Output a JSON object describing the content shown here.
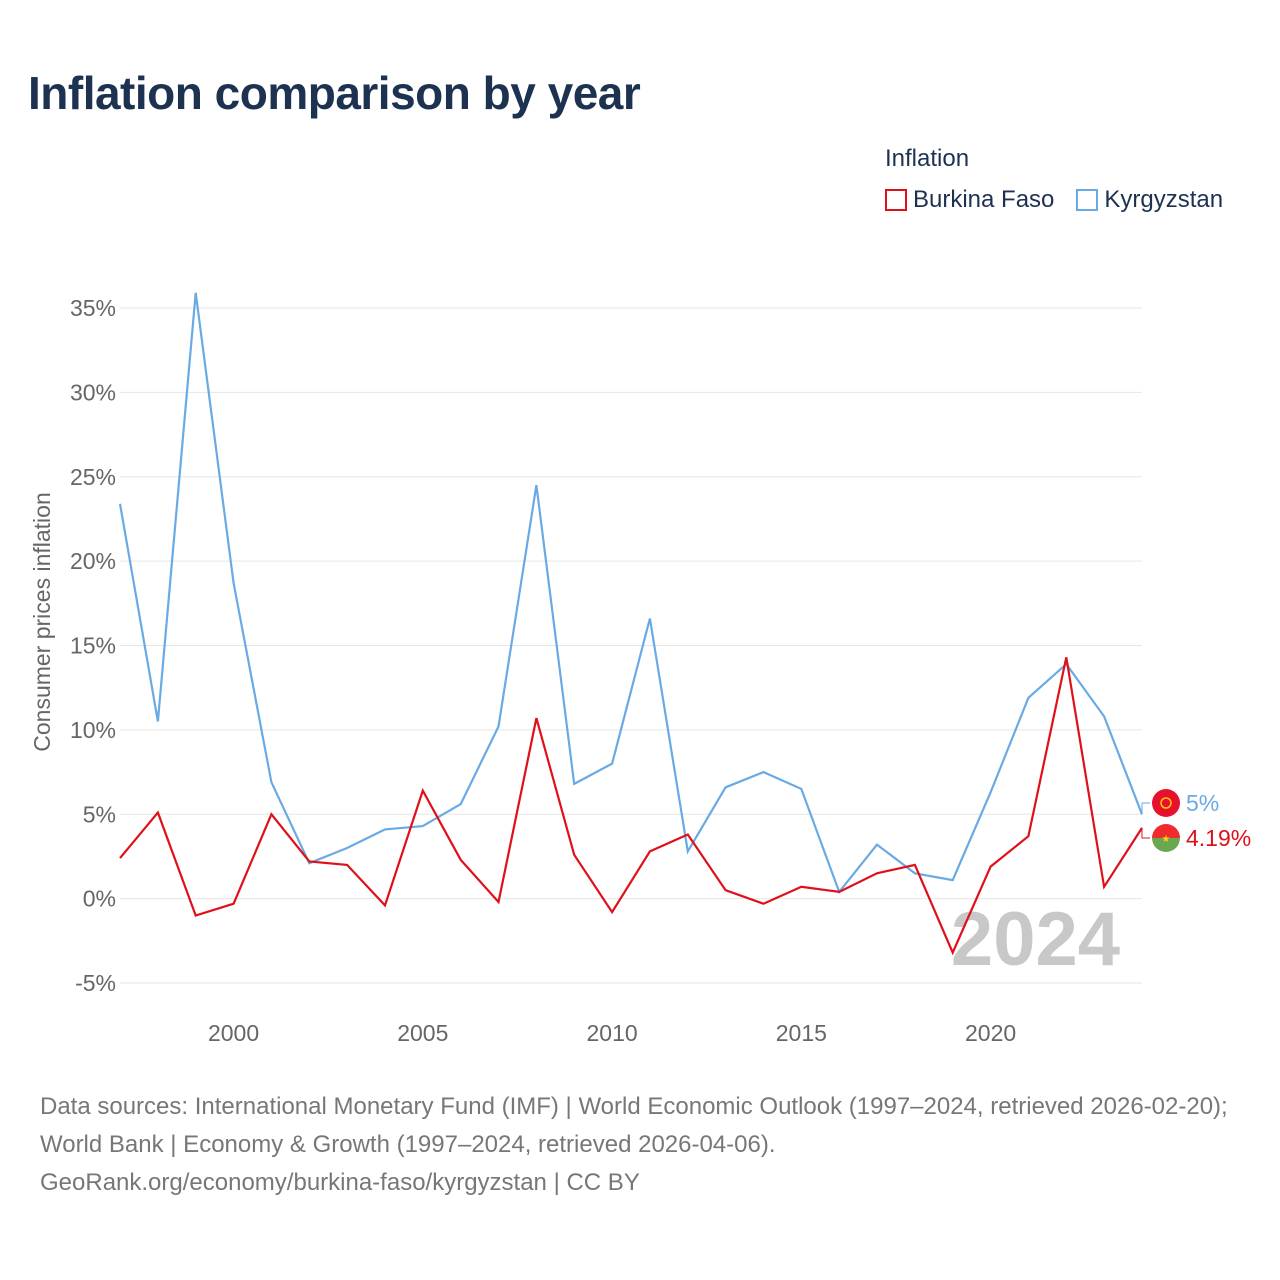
{
  "title": "Inflation comparison by year",
  "legend_title": "Inflation",
  "colors": {
    "burkina": "#e0101a",
    "kyrgyz": "#6aaae4",
    "grid": "#e6e6e6",
    "text": "#1d3251",
    "muted": "#777777"
  },
  "chart_data": {
    "type": "line",
    "ylabel": "Consumer prices inflation",
    "ylim": [
      -5,
      35
    ],
    "yticks": [
      -5,
      0,
      5,
      10,
      15,
      20,
      25,
      30,
      35
    ],
    "ytick_labels": [
      "-5%",
      "0%",
      "5%",
      "10%",
      "15%",
      "20%",
      "25%",
      "30%",
      "35%"
    ],
    "xticks": [
      2000,
      2005,
      2010,
      2015,
      2020
    ],
    "xtick_labels": [
      "2000",
      "2005",
      "2010",
      "2015",
      "2020"
    ],
    "xlim": [
      1997,
      2024
    ],
    "x": [
      1997,
      1998,
      1999,
      2000,
      2001,
      2002,
      2003,
      2004,
      2005,
      2006,
      2007,
      2008,
      2009,
      2010,
      2011,
      2012,
      2013,
      2014,
      2015,
      2016,
      2017,
      2018,
      2019,
      2020,
      2021,
      2022,
      2023,
      2024
    ],
    "series": [
      {
        "name": "Burkina Faso",
        "color": "#e0101a",
        "end_label": "4.19%",
        "values": [
          2.4,
          5.1,
          -1.0,
          -0.3,
          5.0,
          2.2,
          2.0,
          -0.4,
          6.4,
          2.3,
          -0.2,
          10.7,
          2.6,
          -0.8,
          2.8,
          3.8,
          0.5,
          -0.3,
          0.7,
          0.4,
          1.5,
          2.0,
          -3.2,
          1.9,
          3.7,
          14.3,
          0.7,
          4.19
        ]
      },
      {
        "name": "Kyrgyzstan",
        "color": "#6aaae4",
        "end_label": "5%",
        "values": [
          23.4,
          10.5,
          35.9,
          18.7,
          6.9,
          2.1,
          3.0,
          4.1,
          4.3,
          5.6,
          10.2,
          24.5,
          6.8,
          8.0,
          16.6,
          2.8,
          6.6,
          7.5,
          6.5,
          0.4,
          3.2,
          1.5,
          1.1,
          6.3,
          11.9,
          13.9,
          10.8,
          5.0
        ]
      }
    ],
    "year_watermark": "2024"
  },
  "footer": {
    "sources": "Data sources: International Monetary Fund (IMF) | World Economic Outlook (1997–2024, retrieved 2026-02-20); World Bank | Economy & Growth (1997–2024, retrieved 2026-04-06).",
    "credit": "GeoRank.org/economy/burkina-faso/kyrgyzstan | CC BY"
  }
}
